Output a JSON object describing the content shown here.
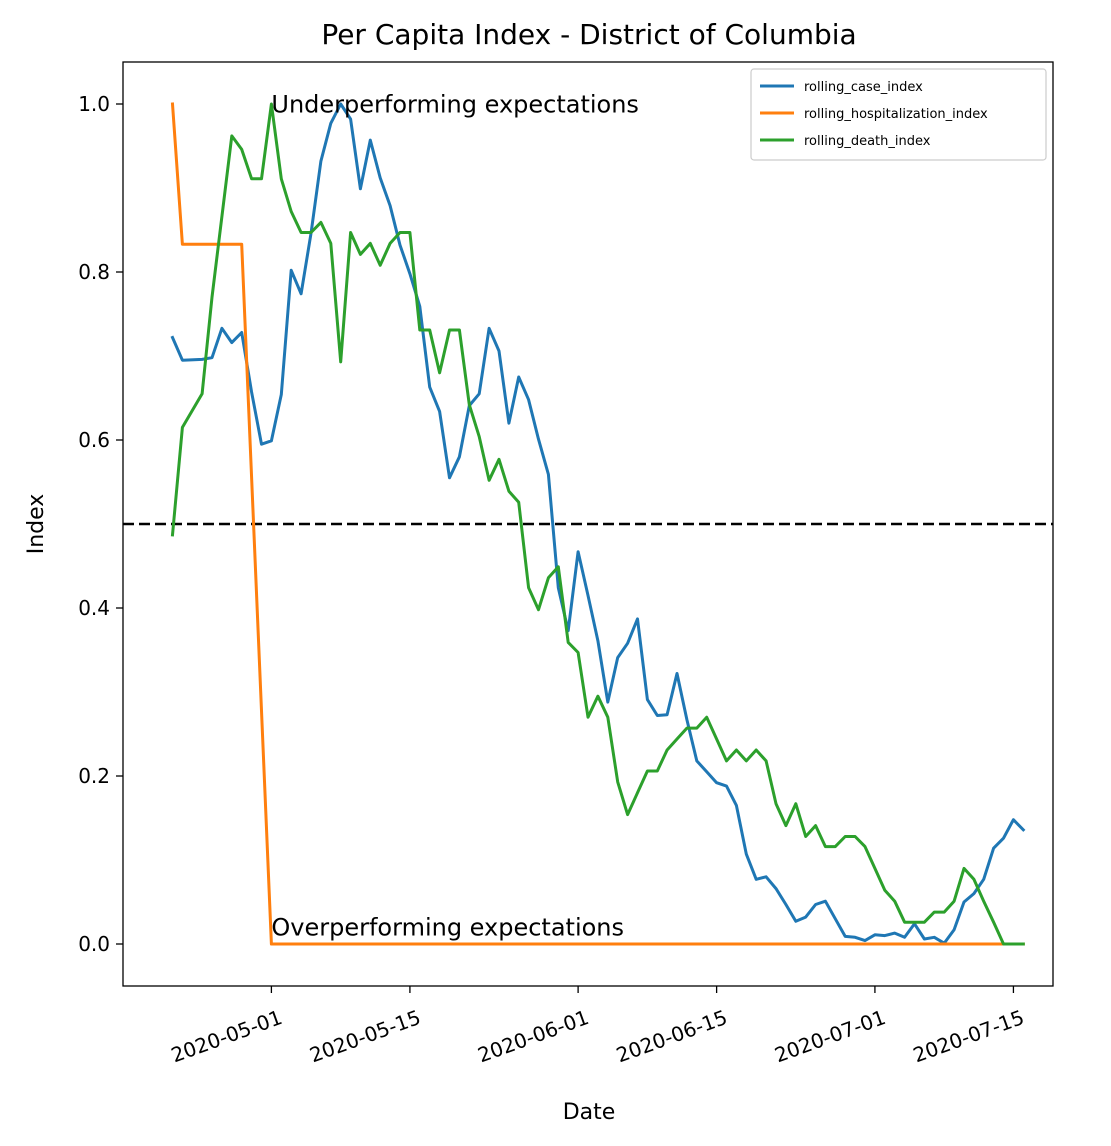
{
  "chart_data": {
    "type": "line",
    "title": "Per Capita Index - District of Columbia",
    "xlabel": "Date",
    "ylabel": "Index",
    "x_axis": "date",
    "xlim": [
      "2020-04-16",
      "2020-07-19"
    ],
    "ylim": [
      -0.05,
      1.05
    ],
    "x_ticks": [
      "2020-05-01",
      "2020-05-15",
      "2020-06-01",
      "2020-06-15",
      "2020-07-01",
      "2020-07-15"
    ],
    "y_ticks": [
      "0.0",
      "0.2",
      "0.4",
      "0.6",
      "0.8",
      "1.0"
    ],
    "grid": false,
    "legend": "top-right",
    "threshold": {
      "y": 0.5,
      "style": "dashed",
      "color": "#000000"
    },
    "annotations": [
      {
        "text": "Underperforming expectations",
        "x": "2020-05-01",
        "y": 0.99
      },
      {
        "text": "Overperforming expectations",
        "x": "2020-05-01",
        "y": 0.01
      }
    ],
    "series": [
      {
        "name": "rolling_case_index",
        "color": "#1f77b4",
        "points": [
          [
            "2020-04-21",
            0.722
          ],
          [
            "2020-04-22",
            0.695
          ],
          [
            "2020-04-24",
            0.696
          ],
          [
            "2020-04-25",
            0.698
          ],
          [
            "2020-04-26",
            0.733
          ],
          [
            "2020-04-27",
            0.716
          ],
          [
            "2020-04-28",
            0.728
          ],
          [
            "2020-04-29",
            0.657
          ],
          [
            "2020-04-30",
            0.595
          ],
          [
            "2020-05-01",
            0.599
          ],
          [
            "2020-05-02",
            0.654
          ],
          [
            "2020-05-03",
            0.802
          ],
          [
            "2020-05-04",
            0.774
          ],
          [
            "2020-05-05",
            0.846
          ],
          [
            "2020-05-06",
            0.932
          ],
          [
            "2020-05-07",
            0.977
          ],
          [
            "2020-05-08",
            1.0
          ],
          [
            "2020-05-09",
            0.982
          ],
          [
            "2020-05-10",
            0.899
          ],
          [
            "2020-05-11",
            0.957
          ],
          [
            "2020-05-12",
            0.912
          ],
          [
            "2020-05-13",
            0.879
          ],
          [
            "2020-05-14",
            0.832
          ],
          [
            "2020-05-15",
            0.798
          ],
          [
            "2020-05-16",
            0.759
          ],
          [
            "2020-05-17",
            0.663
          ],
          [
            "2020-05-18",
            0.634
          ],
          [
            "2020-05-19",
            0.555
          ],
          [
            "2020-05-20",
            0.58
          ],
          [
            "2020-05-21",
            0.641
          ],
          [
            "2020-05-22",
            0.655
          ],
          [
            "2020-05-23",
            0.733
          ],
          [
            "2020-05-24",
            0.706
          ],
          [
            "2020-05-25",
            0.62
          ],
          [
            "2020-05-26",
            0.675
          ],
          [
            "2020-05-27",
            0.648
          ],
          [
            "2020-05-28",
            0.601
          ],
          [
            "2020-05-29",
            0.559
          ],
          [
            "2020-05-30",
            0.424
          ],
          [
            "2020-05-31",
            0.373
          ],
          [
            "2020-06-01",
            0.467
          ],
          [
            "2020-06-02",
            0.415
          ],
          [
            "2020-06-03",
            0.361
          ],
          [
            "2020-06-04",
            0.288
          ],
          [
            "2020-06-05",
            0.341
          ],
          [
            "2020-06-06",
            0.358
          ],
          [
            "2020-06-07",
            0.387
          ],
          [
            "2020-06-08",
            0.291
          ],
          [
            "2020-06-09",
            0.272
          ],
          [
            "2020-06-10",
            0.273
          ],
          [
            "2020-06-11",
            0.322
          ],
          [
            "2020-06-12",
            0.267
          ],
          [
            "2020-06-13",
            0.218
          ],
          [
            "2020-06-14",
            0.205
          ],
          [
            "2020-06-15",
            0.192
          ],
          [
            "2020-06-16",
            0.188
          ],
          [
            "2020-06-17",
            0.165
          ],
          [
            "2020-06-18",
            0.107
          ],
          [
            "2020-06-19",
            0.077
          ],
          [
            "2020-06-20",
            0.08
          ],
          [
            "2020-06-21",
            0.066
          ],
          [
            "2020-06-22",
            0.047
          ],
          [
            "2020-06-23",
            0.027
          ],
          [
            "2020-06-24",
            0.032
          ],
          [
            "2020-06-25",
            0.047
          ],
          [
            "2020-06-26",
            0.051
          ],
          [
            "2020-06-27",
            0.03
          ],
          [
            "2020-06-28",
            0.009
          ],
          [
            "2020-06-29",
            0.008
          ],
          [
            "2020-06-30",
            0.004
          ],
          [
            "2020-07-01",
            0.011
          ],
          [
            "2020-07-02",
            0.01
          ],
          [
            "2020-07-03",
            0.013
          ],
          [
            "2020-07-04",
            0.008
          ],
          [
            "2020-07-05",
            0.024
          ],
          [
            "2020-07-06",
            0.006
          ],
          [
            "2020-07-07",
            0.008
          ],
          [
            "2020-07-08",
            0.001
          ],
          [
            "2020-07-09",
            0.017
          ],
          [
            "2020-07-10",
            0.05
          ],
          [
            "2020-07-11",
            0.06
          ],
          [
            "2020-07-12",
            0.077
          ],
          [
            "2020-07-13",
            0.114
          ],
          [
            "2020-07-14",
            0.126
          ],
          [
            "2020-07-15",
            0.148
          ],
          [
            "2020-07-16",
            0.136
          ]
        ]
      },
      {
        "name": "rolling_hospitalization_index",
        "color": "#ff7f0e",
        "points": [
          [
            "2020-04-21",
            1.0
          ],
          [
            "2020-04-22",
            0.833
          ],
          [
            "2020-04-27",
            0.833
          ],
          [
            "2020-04-28",
            0.833
          ],
          [
            "2020-05-01",
            0.0
          ],
          [
            "2020-07-16",
            0.0
          ]
        ]
      },
      {
        "name": "rolling_death_index",
        "color": "#2ca02c",
        "points": [
          [
            "2020-04-21",
            0.487
          ],
          [
            "2020-04-22",
            0.615
          ],
          [
            "2020-04-24",
            0.655
          ],
          [
            "2020-04-25",
            0.77
          ],
          [
            "2020-04-27",
            0.962
          ],
          [
            "2020-04-28",
            0.946
          ],
          [
            "2020-04-29",
            0.911
          ],
          [
            "2020-04-30",
            0.911
          ],
          [
            "2020-05-01",
            1.0
          ],
          [
            "2020-05-02",
            0.911
          ],
          [
            "2020-05-03",
            0.872
          ],
          [
            "2020-05-04",
            0.847
          ],
          [
            "2020-05-05",
            0.847
          ],
          [
            "2020-05-06",
            0.859
          ],
          [
            "2020-05-07",
            0.834
          ],
          [
            "2020-05-08",
            0.693
          ],
          [
            "2020-05-09",
            0.847
          ],
          [
            "2020-05-10",
            0.821
          ],
          [
            "2020-05-11",
            0.834
          ],
          [
            "2020-05-12",
            0.808
          ],
          [
            "2020-05-13",
            0.834
          ],
          [
            "2020-05-14",
            0.847
          ],
          [
            "2020-05-15",
            0.847
          ],
          [
            "2020-05-16",
            0.731
          ],
          [
            "2020-05-17",
            0.731
          ],
          [
            "2020-05-18",
            0.68
          ],
          [
            "2020-05-19",
            0.731
          ],
          [
            "2020-05-20",
            0.731
          ],
          [
            "2020-05-21",
            0.642
          ],
          [
            "2020-05-22",
            0.604
          ],
          [
            "2020-05-23",
            0.552
          ],
          [
            "2020-05-24",
            0.577
          ],
          [
            "2020-05-25",
            0.539
          ],
          [
            "2020-05-26",
            0.526
          ],
          [
            "2020-05-27",
            0.424
          ],
          [
            "2020-05-28",
            0.398
          ],
          [
            "2020-05-29",
            0.436
          ],
          [
            "2020-05-30",
            0.449
          ],
          [
            "2020-05-31",
            0.359
          ],
          [
            "2020-06-01",
            0.347
          ],
          [
            "2020-06-02",
            0.27
          ],
          [
            "2020-06-03",
            0.295
          ],
          [
            "2020-06-04",
            0.27
          ],
          [
            "2020-06-05",
            0.193
          ],
          [
            "2020-06-06",
            0.154
          ],
          [
            "2020-06-07",
            0.18
          ],
          [
            "2020-06-08",
            0.206
          ],
          [
            "2020-06-09",
            0.206
          ],
          [
            "2020-06-10",
            0.231
          ],
          [
            "2020-06-11",
            0.244
          ],
          [
            "2020-06-12",
            0.257
          ],
          [
            "2020-06-13",
            0.257
          ],
          [
            "2020-06-14",
            0.27
          ],
          [
            "2020-06-15",
            0.244
          ],
          [
            "2020-06-16",
            0.218
          ],
          [
            "2020-06-17",
            0.231
          ],
          [
            "2020-06-18",
            0.218
          ],
          [
            "2020-06-19",
            0.231
          ],
          [
            "2020-06-20",
            0.218
          ],
          [
            "2020-06-21",
            0.167
          ],
          [
            "2020-06-22",
            0.141
          ],
          [
            "2020-06-23",
            0.167
          ],
          [
            "2020-06-24",
            0.128
          ],
          [
            "2020-06-25",
            0.141
          ],
          [
            "2020-06-26",
            0.116
          ],
          [
            "2020-06-27",
            0.116
          ],
          [
            "2020-06-28",
            0.128
          ],
          [
            "2020-06-29",
            0.128
          ],
          [
            "2020-06-30",
            0.116
          ],
          [
            "2020-07-01",
            0.09
          ],
          [
            "2020-07-02",
            0.064
          ],
          [
            "2020-07-03",
            0.051
          ],
          [
            "2020-07-04",
            0.026
          ],
          [
            "2020-07-05",
            0.026
          ],
          [
            "2020-07-06",
            0.026
          ],
          [
            "2020-07-07",
            0.038
          ],
          [
            "2020-07-08",
            0.038
          ],
          [
            "2020-07-09",
            0.051
          ],
          [
            "2020-07-10",
            0.09
          ],
          [
            "2020-07-11",
            0.077
          ],
          [
            "2020-07-12",
            0.051
          ],
          [
            "2020-07-13",
            0.026
          ],
          [
            "2020-07-14",
            0.0
          ],
          [
            "2020-07-15",
            0.0
          ],
          [
            "2020-07-16",
            0.0
          ]
        ]
      }
    ]
  }
}
